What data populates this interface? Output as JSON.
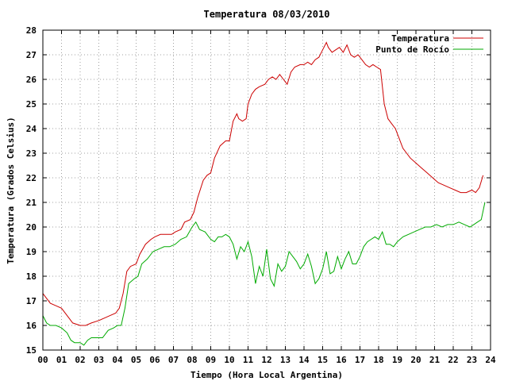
{
  "chart_data": {
    "type": "line",
    "title": "Temperatura 08/03/2010",
    "xlabel": "Tiempo (Hora Local Argentina)",
    "ylabel": "Temperatura (Grados Celsius)",
    "xlim": [
      0,
      24
    ],
    "ylim": [
      15,
      28
    ],
    "x_ticks": [
      "00",
      "01",
      "02",
      "03",
      "04",
      "05",
      "06",
      "07",
      "08",
      "09",
      "10",
      "11",
      "12",
      "13",
      "14",
      "15",
      "16",
      "17",
      "18",
      "19",
      "20",
      "21",
      "22",
      "23",
      "24"
    ],
    "y_ticks": [
      "15",
      "16",
      "17",
      "18",
      "19",
      "20",
      "21",
      "22",
      "23",
      "24",
      "25",
      "26",
      "27",
      "28"
    ],
    "grid": true,
    "legend_position": "top-right",
    "series": [
      {
        "name": "Temperatura",
        "color": "#cc0000",
        "x": [
          0,
          0.2,
          0.4,
          0.7,
          1.0,
          1.4,
          1.6,
          2.0,
          2.3,
          2.6,
          3.0,
          3.3,
          3.6,
          3.9,
          4.1,
          4.3,
          4.5,
          4.7,
          5.0,
          5.2,
          5.5,
          5.8,
          6.0,
          6.3,
          6.6,
          6.9,
          7.1,
          7.4,
          7.6,
          7.9,
          8.1,
          8.3,
          8.6,
          8.8,
          9.0,
          9.2,
          9.5,
          9.8,
          10.0,
          10.2,
          10.4,
          10.5,
          10.7,
          10.9,
          11.0,
          11.2,
          11.4,
          11.6,
          11.9,
          12.1,
          12.3,
          12.5,
          12.7,
          12.9,
          13.1,
          13.3,
          13.5,
          13.8,
          14.0,
          14.2,
          14.4,
          14.6,
          14.8,
          15.0,
          15.2,
          15.3,
          15.5,
          15.7,
          15.9,
          16.1,
          16.3,
          16.5,
          16.7,
          16.9,
          17.1,
          17.3,
          17.5,
          17.7,
          17.9,
          18.1,
          18.3,
          18.5,
          18.7,
          18.9,
          19.1,
          19.3,
          19.5,
          19.7,
          20.0,
          20.3,
          20.6,
          20.9,
          21.2,
          21.5,
          21.8,
          22.1,
          22.4,
          22.7,
          23.0,
          23.2,
          23.4,
          23.6
        ],
        "values": [
          17.3,
          17.1,
          16.9,
          16.8,
          16.7,
          16.3,
          16.1,
          16.0,
          16.0,
          16.1,
          16.2,
          16.3,
          16.4,
          16.5,
          16.7,
          17.3,
          18.2,
          18.4,
          18.5,
          18.9,
          19.3,
          19.5,
          19.6,
          19.7,
          19.7,
          19.7,
          19.8,
          19.9,
          20.2,
          20.3,
          20.6,
          21.2,
          21.9,
          22.1,
          22.2,
          22.8,
          23.3,
          23.5,
          23.5,
          24.3,
          24.6,
          24.4,
          24.3,
          24.4,
          25.0,
          25.4,
          25.6,
          25.7,
          25.8,
          26.0,
          26.1,
          26.0,
          26.2,
          26.0,
          25.8,
          26.3,
          26.5,
          26.6,
          26.6,
          26.7,
          26.6,
          26.8,
          26.9,
          27.2,
          27.5,
          27.3,
          27.1,
          27.2,
          27.3,
          27.1,
          27.4,
          27.0,
          26.9,
          27.0,
          26.8,
          26.6,
          26.5,
          26.6,
          26.5,
          26.4,
          25.0,
          24.4,
          24.2,
          24.0,
          23.6,
          23.2,
          23.0,
          22.8,
          22.6,
          22.4,
          22.2,
          22.0,
          21.8,
          21.7,
          21.6,
          21.5,
          21.4,
          21.4,
          21.5,
          21.4,
          21.6,
          22.1
        ]
      },
      {
        "name": "Punto de Rocío",
        "color": "#00aa00",
        "x": [
          0,
          0.2,
          0.4,
          0.7,
          1.0,
          1.3,
          1.5,
          1.7,
          2.0,
          2.2,
          2.4,
          2.6,
          2.9,
          3.2,
          3.5,
          3.8,
          4.0,
          4.2,
          4.4,
          4.6,
          4.9,
          5.1,
          5.3,
          5.6,
          5.9,
          6.2,
          6.5,
          6.8,
          7.1,
          7.4,
          7.7,
          8.0,
          8.2,
          8.4,
          8.7,
          9.0,
          9.2,
          9.4,
          9.6,
          9.8,
          10.0,
          10.2,
          10.4,
          10.6,
          10.8,
          11.0,
          11.2,
          11.4,
          11.6,
          11.8,
          12.0,
          12.2,
          12.4,
          12.6,
          12.8,
          13.0,
          13.2,
          13.4,
          13.6,
          13.8,
          14.0,
          14.2,
          14.4,
          14.6,
          14.8,
          15.0,
          15.2,
          15.4,
          15.6,
          15.8,
          16.0,
          16.2,
          16.4,
          16.6,
          16.8,
          17.0,
          17.2,
          17.4,
          17.6,
          17.8,
          18.0,
          18.2,
          18.4,
          18.6,
          18.8,
          19.0,
          19.3,
          19.6,
          19.9,
          20.2,
          20.5,
          20.8,
          21.1,
          21.4,
          21.7,
          22.0,
          22.3,
          22.6,
          22.9,
          23.1,
          23.3,
          23.5,
          23.7
        ],
        "values": [
          16.4,
          16.1,
          16.0,
          16.0,
          15.9,
          15.7,
          15.4,
          15.3,
          15.3,
          15.2,
          15.4,
          15.5,
          15.5,
          15.5,
          15.8,
          15.9,
          16.0,
          16.0,
          16.7,
          17.7,
          17.9,
          18.0,
          18.5,
          18.7,
          19.0,
          19.1,
          19.2,
          19.2,
          19.3,
          19.5,
          19.6,
          20.0,
          20.2,
          19.9,
          19.8,
          19.5,
          19.4,
          19.6,
          19.6,
          19.7,
          19.6,
          19.3,
          18.7,
          19.2,
          19.0,
          19.4,
          18.8,
          17.7,
          18.4,
          18.0,
          19.1,
          17.9,
          17.6,
          18.5,
          18.2,
          18.4,
          19.0,
          18.8,
          18.6,
          18.3,
          18.5,
          18.9,
          18.4,
          17.7,
          17.9,
          18.3,
          19.0,
          18.1,
          18.2,
          18.8,
          18.3,
          18.7,
          19.0,
          18.5,
          18.5,
          18.8,
          19.2,
          19.4,
          19.5,
          19.6,
          19.5,
          19.8,
          19.3,
          19.3,
          19.2,
          19.4,
          19.6,
          19.7,
          19.8,
          19.9,
          20.0,
          20.0,
          20.1,
          20.0,
          20.1,
          20.1,
          20.2,
          20.1,
          20.0,
          20.1,
          20.2,
          20.3,
          21.0
        ]
      }
    ]
  }
}
